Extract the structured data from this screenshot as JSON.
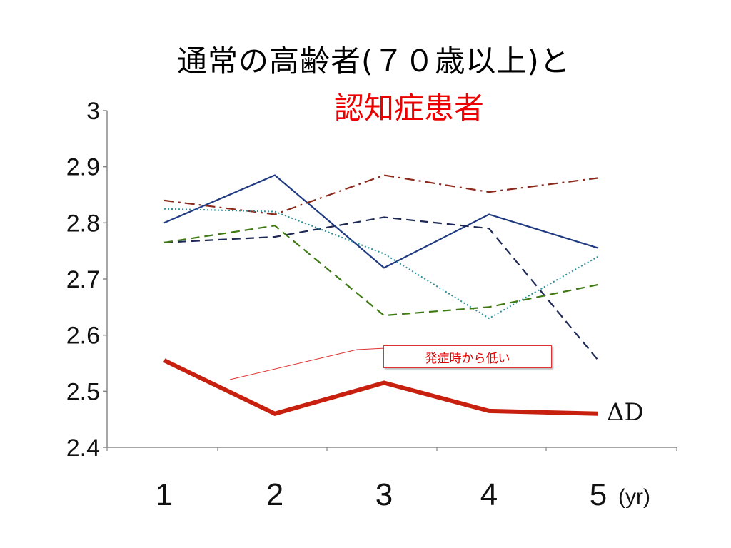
{
  "title_line1": "通常の高齢者(７０歳以上)と",
  "title_line2": "認知症患者",
  "callout_text": "発症時から低い",
  "ad_label": "ΔD",
  "colors": {
    "title2": "#ee0000",
    "ad": "#c8200f",
    "s1": "#1f3a80",
    "s2": "#1e2a55",
    "s3": "#8b2a1c",
    "s4": "#2e8f9a",
    "s5": "#3f7a14"
  },
  "chart_data": {
    "type": "line",
    "x": [
      "1",
      "2",
      "3",
      "4",
      "5"
    ],
    "x_unit": "(yr)",
    "ylim": [
      2.4,
      3.0
    ],
    "yticks": [
      "2.4",
      "2.5",
      "2.6",
      "2.7",
      "2.8",
      "2.9",
      "3"
    ],
    "series": [
      {
        "style": "solid",
        "color": "#1f3a80",
        "values": [
          2.8,
          2.885,
          2.72,
          2.815,
          2.755
        ]
      },
      {
        "style": "dashed",
        "color": "#1e2a55",
        "values": [
          2.765,
          2.775,
          2.81,
          2.79,
          2.555
        ]
      },
      {
        "style": "dashdot",
        "color": "#8b2a1c",
        "values": [
          2.84,
          2.815,
          2.885,
          2.855,
          2.88
        ]
      },
      {
        "style": "dotted",
        "color": "#2e8f9a",
        "values": [
          2.825,
          2.82,
          2.745,
          2.63,
          2.74
        ]
      },
      {
        "style": "dashed",
        "color": "#3f7a14",
        "values": [
          2.765,
          2.795,
          2.635,
          2.65,
          2.69
        ]
      },
      {
        "style": "thick",
        "color": "#c8200f",
        "name": "ΔD",
        "values": [
          2.555,
          2.46,
          2.515,
          2.465,
          2.46
        ]
      }
    ]
  }
}
